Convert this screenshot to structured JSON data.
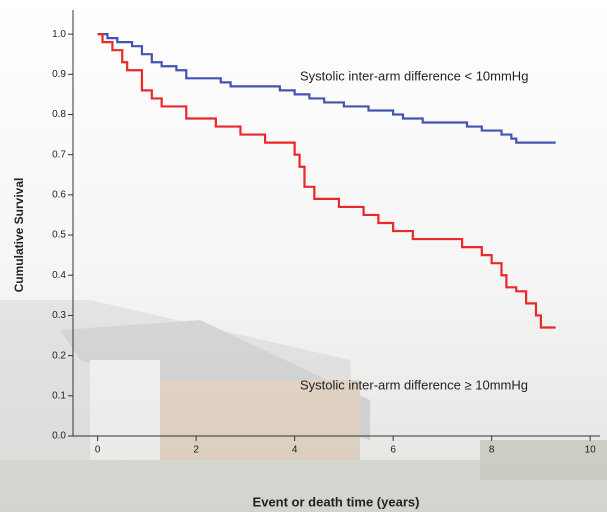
{
  "chart_data": {
    "type": "step",
    "y_label": "Cumulative Survival",
    "x_label": "Event or death time (years)",
    "xlim": [
      -0.5,
      10.2
    ],
    "ylim": [
      0,
      1.06
    ],
    "xticks": [
      0,
      2,
      4,
      6,
      8,
      10
    ],
    "yticks": [
      {
        "value": 0,
        "label": "0.0"
      },
      {
        "value": 0.1,
        "label": "0.1"
      },
      {
        "value": 0.2,
        "label": "0.2"
      },
      {
        "value": 0.3,
        "label": "0.3"
      },
      {
        "value": 0.4,
        "label": "0.4"
      },
      {
        "value": 0.5,
        "label": "0.5"
      },
      {
        "value": 0.6,
        "label": "0.6"
      },
      {
        "value": 0.7,
        "label": "0.7"
      },
      {
        "value": 0.8,
        "label": "0.8"
      },
      {
        "value": 0.9,
        "label": "0.9"
      },
      {
        "value": 1,
        "label": "1.0"
      }
    ],
    "series": [
      {
        "name": "Systolic inter-arm difference < 10mmHg",
        "color": "#4455b0",
        "x": [
          0,
          0.2,
          0.4,
          0.7,
          0.9,
          1.1,
          1.3,
          1.6,
          1.8,
          2.5,
          2.7,
          3.7,
          4.0,
          4.3,
          4.6,
          5.0,
          5.5,
          6.0,
          6.2,
          6.6,
          7.5,
          7.8,
          8.2,
          8.4,
          8.5,
          9.3
        ],
        "values": [
          1.0,
          0.99,
          0.98,
          0.97,
          0.95,
          0.93,
          0.92,
          0.91,
          0.89,
          0.88,
          0.87,
          0.86,
          0.85,
          0.84,
          0.83,
          0.82,
          0.81,
          0.8,
          0.79,
          0.78,
          0.77,
          0.76,
          0.75,
          0.74,
          0.73,
          0.73
        ]
      },
      {
        "name": "Systolic inter-arm difference ≥ 10mmHg",
        "color": "#e8282a",
        "x": [
          0,
          0.1,
          0.3,
          0.5,
          0.6,
          0.9,
          1.1,
          1.3,
          1.8,
          2.4,
          2.9,
          3.4,
          4.0,
          4.1,
          4.2,
          4.4,
          4.9,
          5.4,
          5.7,
          6.0,
          6.4,
          7.4,
          7.8,
          8.0,
          8.2,
          8.3,
          8.5,
          8.7,
          8.9,
          9.0,
          9.3
        ],
        "values": [
          1.0,
          0.98,
          0.96,
          0.93,
          0.91,
          0.86,
          0.84,
          0.82,
          0.79,
          0.77,
          0.75,
          0.73,
          0.7,
          0.67,
          0.62,
          0.59,
          0.57,
          0.55,
          0.53,
          0.51,
          0.49,
          0.47,
          0.45,
          0.43,
          0.4,
          0.37,
          0.36,
          0.33,
          0.3,
          0.27,
          0.27
        ]
      }
    ]
  }
}
